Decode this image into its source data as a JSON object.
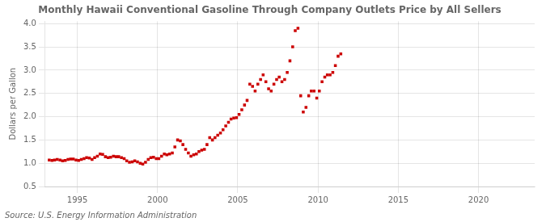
{
  "chart_data": {
    "type": "scatter",
    "title": "Monthly Hawaii Conventional Gasoline Through Company Outlets Price by All Sellers",
    "ylabel": "Dollars per Gallon",
    "source": "Source: U.S. Energy Information Administration",
    "color": "#cc0000",
    "marker": "square",
    "grid": true,
    "xlim": [
      1993.0,
      2023.5
    ],
    "ylim": [
      0.5,
      4.05
    ],
    "xticks": [
      1995,
      2000,
      2005,
      2010,
      2015,
      2020
    ],
    "yticks": [
      0.5,
      {
        "value": 1.0,
        "label": "1.0"
      },
      1.5,
      {
        "value": 2.0,
        "label": "2.0"
      },
      2.5,
      {
        "value": 3.0,
        "label": "3.0"
      },
      3.5,
      {
        "value": 4.0,
        "label": "4.0"
      }
    ],
    "x": [
      1993.25,
      1993.42,
      1993.58,
      1993.75,
      1993.92,
      1994.08,
      1994.25,
      1994.42,
      1994.58,
      1994.75,
      1994.92,
      1995.08,
      1995.25,
      1995.42,
      1995.58,
      1995.75,
      1995.92,
      1996.08,
      1996.25,
      1996.42,
      1996.58,
      1996.75,
      1996.92,
      1997.08,
      1997.25,
      1997.42,
      1997.58,
      1997.75,
      1997.92,
      1998.08,
      1998.25,
      1998.42,
      1998.58,
      1998.75,
      1998.92,
      1999.08,
      1999.25,
      1999.42,
      1999.58,
      1999.75,
      1999.92,
      2000.08,
      2000.25,
      2000.42,
      2000.58,
      2000.75,
      2000.92,
      2001.08,
      2001.25,
      2001.42,
      2001.58,
      2001.75,
      2001.92,
      2002.08,
      2002.25,
      2002.42,
      2002.58,
      2002.75,
      2002.92,
      2003.08,
      2003.25,
      2003.42,
      2003.58,
      2003.75,
      2003.92,
      2004.08,
      2004.25,
      2004.42,
      2004.58,
      2004.75,
      2004.92,
      2005.08,
      2005.25,
      2005.42,
      2005.58,
      2005.75,
      2005.92,
      2006.08,
      2006.25,
      2006.42,
      2006.58,
      2006.75,
      2006.92,
      2007.08,
      2007.25,
      2007.42,
      2007.58,
      2007.75,
      2007.92,
      2008.08,
      2008.25,
      2008.42,
      2008.58,
      2008.75,
      2008.92,
      2009.08,
      2009.25,
      2009.42,
      2009.58,
      2009.75,
      2009.92,
      2010.08,
      2010.25,
      2010.42,
      2010.58,
      2010.75,
      2010.92,
      2011.08,
      2011.25,
      2011.42
    ],
    "values": [
      1.07,
      1.06,
      1.07,
      1.08,
      1.07,
      1.05,
      1.06,
      1.08,
      1.09,
      1.09,
      1.07,
      1.06,
      1.08,
      1.1,
      1.12,
      1.11,
      1.08,
      1.12,
      1.15,
      1.2,
      1.19,
      1.14,
      1.12,
      1.13,
      1.15,
      1.14,
      1.14,
      1.12,
      1.1,
      1.05,
      1.02,
      1.03,
      1.05,
      1.03,
      1.0,
      0.98,
      1.02,
      1.08,
      1.12,
      1.13,
      1.1,
      1.1,
      1.15,
      1.2,
      1.18,
      1.2,
      1.22,
      1.35,
      1.5,
      1.48,
      1.4,
      1.3,
      1.22,
      1.15,
      1.18,
      1.2,
      1.25,
      1.28,
      1.3,
      1.4,
      1.55,
      1.5,
      1.55,
      1.6,
      1.65,
      1.72,
      1.8,
      1.88,
      1.95,
      1.97,
      1.98,
      2.05,
      2.15,
      2.25,
      2.35,
      2.7,
      2.65,
      2.55,
      2.7,
      2.8,
      2.9,
      2.75,
      2.6,
      2.55,
      2.7,
      2.8,
      2.85,
      2.75,
      2.8,
      2.95,
      3.2,
      3.5,
      3.85,
      3.9,
      2.45,
      2.1,
      2.2,
      2.45,
      2.55,
      2.55,
      2.4,
      2.55,
      2.75,
      2.85,
      2.9,
      2.9,
      2.95,
      3.1,
      3.3,
      3.35
    ]
  }
}
